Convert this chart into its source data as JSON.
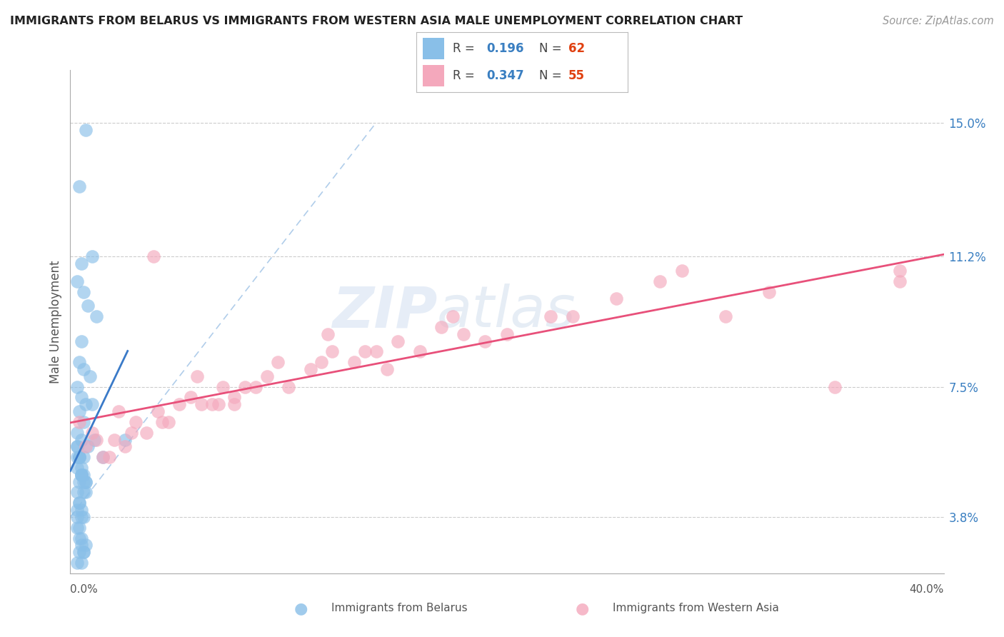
{
  "title": "IMMIGRANTS FROM BELARUS VS IMMIGRANTS FROM WESTERN ASIA MALE UNEMPLOYMENT CORRELATION CHART",
  "source": "Source: ZipAtlas.com",
  "ylabel": "Male Unemployment",
  "yticks": [
    3.8,
    7.5,
    11.2,
    15.0
  ],
  "ytick_labels": [
    "3.8%",
    "7.5%",
    "11.2%",
    "15.0%"
  ],
  "xlim": [
    0.0,
    40.0
  ],
  "ylim": [
    2.2,
    16.5
  ],
  "legend_R1_val": "0.196",
  "legend_N1_val": "62",
  "legend_R2_val": "0.347",
  "legend_N2_val": "55",
  "blue_color": "#89bfe8",
  "pink_color": "#f4a8bc",
  "blue_line_color": "#3a7ac8",
  "pink_line_color": "#e8507a",
  "diagonal_color": "#a8c8e8",
  "watermark_color": "#c8d8ee",
  "belarus_x": [
    0.7,
    0.4,
    1.0,
    0.5,
    0.3,
    0.6,
    0.8,
    1.2,
    0.5,
    0.4,
    0.6,
    0.9,
    0.3,
    0.5,
    0.7,
    1.0,
    0.4,
    0.6,
    0.3,
    0.5,
    0.8,
    1.1,
    0.4,
    0.6,
    0.3,
    0.5,
    0.7,
    0.4,
    0.6,
    0.3,
    0.5,
    0.7,
    0.4,
    0.3,
    0.5,
    0.6,
    0.3,
    0.4,
    0.5,
    0.6,
    0.7,
    0.3,
    0.4,
    0.5,
    0.3,
    0.4,
    0.6,
    0.5,
    0.3,
    0.4,
    0.5,
    0.6,
    0.3,
    0.4,
    1.5,
    2.5,
    0.5,
    0.7,
    0.4,
    0.6,
    0.5,
    0.3
  ],
  "belarus_y": [
    14.8,
    13.2,
    11.2,
    11.0,
    10.5,
    10.2,
    9.8,
    9.5,
    8.8,
    8.2,
    8.0,
    7.8,
    7.5,
    7.2,
    7.0,
    7.0,
    6.8,
    6.5,
    6.2,
    6.0,
    5.8,
    6.0,
    5.5,
    5.5,
    5.2,
    5.0,
    4.8,
    4.8,
    4.5,
    5.5,
    5.0,
    4.5,
    4.2,
    4.0,
    4.0,
    3.8,
    5.8,
    5.5,
    5.2,
    5.0,
    4.8,
    5.8,
    5.5,
    5.0,
    4.5,
    4.2,
    4.8,
    3.8,
    3.5,
    3.2,
    3.0,
    2.8,
    3.8,
    3.5,
    5.5,
    6.0,
    3.2,
    3.0,
    2.8,
    2.8,
    2.5,
    2.5
  ],
  "western_asia_x": [
    0.4,
    0.7,
    1.0,
    1.5,
    2.0,
    2.5,
    3.0,
    3.5,
    4.0,
    5.0,
    5.5,
    6.0,
    7.0,
    7.5,
    8.0,
    9.0,
    10.0,
    11.0,
    12.0,
    13.0,
    14.0,
    15.0,
    16.0,
    17.0,
    18.0,
    20.0,
    22.0,
    25.0,
    28.0,
    30.0,
    35.0,
    38.0,
    1.2,
    1.8,
    2.8,
    4.5,
    6.5,
    8.5,
    11.5,
    14.5,
    19.0,
    23.0,
    32.0,
    3.8,
    5.8,
    9.5,
    13.5,
    7.5,
    2.2,
    4.2,
    6.8,
    11.8,
    17.5,
    27.0,
    38.0
  ],
  "western_asia_y": [
    6.5,
    5.8,
    6.2,
    5.5,
    6.0,
    5.8,
    6.5,
    6.2,
    6.8,
    7.0,
    7.2,
    7.0,
    7.5,
    7.2,
    7.5,
    7.8,
    7.5,
    8.0,
    8.5,
    8.2,
    8.5,
    8.8,
    8.5,
    9.2,
    9.0,
    9.0,
    9.5,
    10.0,
    10.8,
    9.5,
    7.5,
    10.5,
    6.0,
    5.5,
    6.2,
    6.5,
    7.0,
    7.5,
    8.2,
    8.0,
    8.8,
    9.5,
    10.2,
    11.2,
    7.8,
    8.2,
    8.5,
    7.0,
    6.8,
    6.5,
    7.0,
    9.0,
    9.5,
    10.5,
    10.8
  ]
}
